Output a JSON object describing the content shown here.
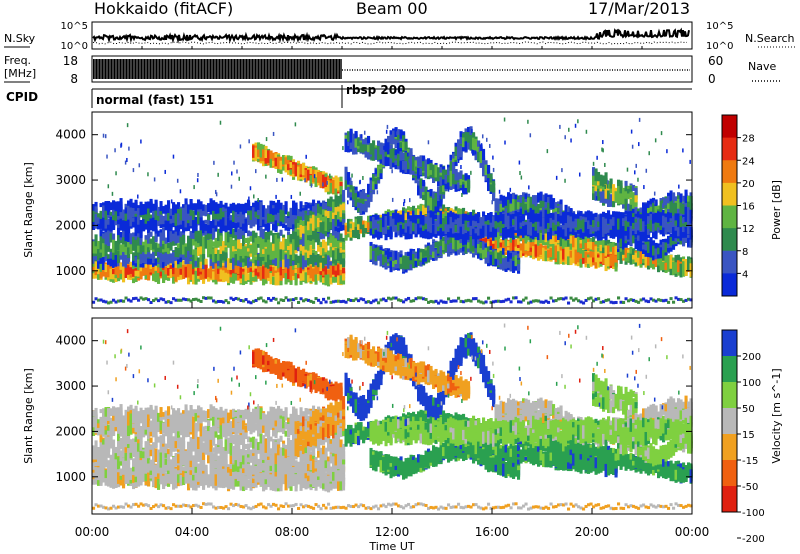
{
  "header": {
    "station": "Hokkaido (fitACF)",
    "beam": "Beam 00",
    "date": "17/Mar/2013"
  },
  "noise_panel": {
    "left_label": "N.Sky",
    "right_label": "N.Search",
    "left_ticks": [
      "10^5",
      "10^0"
    ],
    "right_ticks": [
      "10^5",
      "10^0"
    ]
  },
  "freq_panel": {
    "left_label_top": "Freq.",
    "left_label_bottom": "[MHz]",
    "right_label": "Nave",
    "left_ticks": [
      "18",
      "8"
    ],
    "right_ticks": [
      "60",
      "0"
    ]
  },
  "cpid_panel": {
    "label": "CPID",
    "segments": [
      {
        "name": "normal (fast) 151",
        "start_hour": 0,
        "end_hour": 10
      },
      {
        "name": "rbsp 200",
        "start_hour": 10,
        "end_hour": 24
      }
    ]
  },
  "chart_data": [
    {
      "type": "heatmap",
      "name": "power",
      "ylabel": "Slant Range [km]",
      "yticks": [
        1000,
        2000,
        3000,
        4000
      ],
      "ylim": [
        180,
        4500
      ],
      "colorbar_label": "Power [dB]",
      "colorbar_ticks": [
        4,
        8,
        12,
        16,
        20,
        24,
        28
      ],
      "colorbar_range": [
        0,
        32
      ],
      "colors": [
        "#0a2ad8",
        "#3a55c2",
        "#2f8a4e",
        "#5fb442",
        "#f0c020",
        "#ef7a10",
        "#e62b12",
        "#c00000"
      ]
    },
    {
      "type": "heatmap",
      "name": "velocity",
      "ylabel": "Slant Range [km]",
      "yticks": [
        1000,
        2000,
        3000,
        4000
      ],
      "ylim": [
        180,
        4500
      ],
      "colorbar_label": "Velocity [m s^-1]",
      "colorbar_ticks": [
        200,
        100,
        50,
        15,
        -15,
        -50,
        -100,
        -200
      ],
      "colors": [
        "#1a3fd0",
        "#2aa050",
        "#7fd040",
        "#b8b8b8",
        "#f0a020",
        "#f06010",
        "#e02010"
      ]
    }
  ],
  "time_axis": {
    "label": "Time UT",
    "ticks": [
      "00:00",
      "04:00",
      "08:00",
      "12:00",
      "16:00",
      "20:00",
      "00:00"
    ],
    "range_hours": [
      0,
      24
    ]
  }
}
